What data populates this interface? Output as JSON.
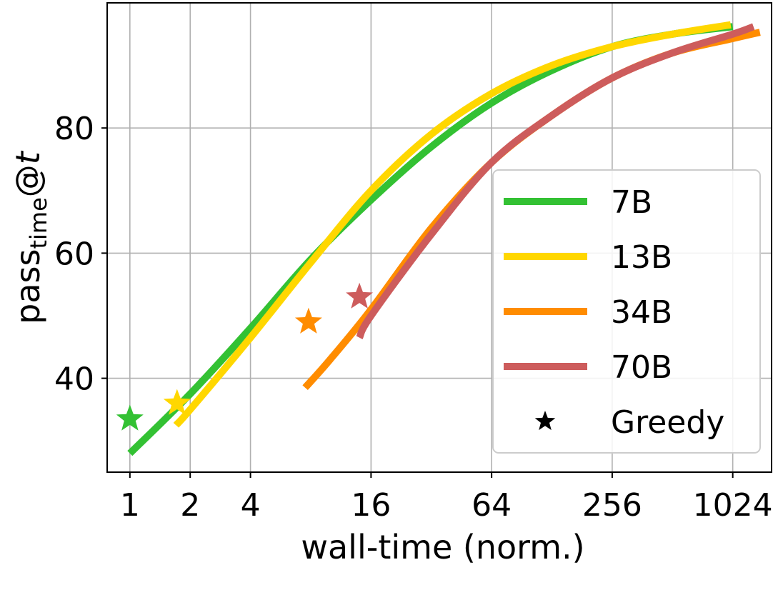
{
  "chart_data": {
    "type": "line",
    "xlabel": "wall-time (norm.)",
    "ylabel": {
      "base": "pass",
      "subscript": "time",
      "suffix": "@",
      "italic": "t"
    },
    "x_scale": "log2",
    "xlim": [
      0.77,
      1600
    ],
    "ylim": [
      25,
      100
    ],
    "x_ticks": [
      1,
      2,
      4,
      16,
      64,
      256,
      1024
    ],
    "x_tick_labels": [
      "1",
      "2",
      "4",
      "16",
      "64",
      "256",
      "1024"
    ],
    "y_ticks": [
      40,
      60,
      80
    ],
    "y_tick_labels": [
      "40",
      "60",
      "80"
    ],
    "grid": true,
    "legend_position": "lower-right",
    "series": [
      {
        "name": "7B",
        "color": "#33c133",
        "x": [
          1,
          2,
          4,
          8,
          16,
          32,
          64,
          128,
          256,
          512,
          1024
        ],
        "y": [
          28,
          37.5,
          48,
          59,
          68.5,
          77,
          84,
          89.2,
          93,
          95,
          96.2
        ],
        "greedy": {
          "x": 1,
          "y": 33.5
        }
      },
      {
        "name": "13B",
        "color": "#ffd700",
        "x": [
          1.7,
          2,
          4,
          8,
          16,
          32,
          64,
          128,
          256,
          512,
          1000
        ],
        "y": [
          32.5,
          35,
          46.5,
          58.5,
          70,
          79,
          85.5,
          90,
          93,
          95,
          96.5
        ],
        "greedy": {
          "x": 1.72,
          "y": 36
        }
      },
      {
        "name": "34B",
        "color": "#ff8c00",
        "x": [
          7.5,
          10,
          16,
          32,
          64,
          128,
          256,
          512,
          1024,
          1400
        ],
        "y": [
          38.5,
          43,
          51,
          64,
          74.5,
          82,
          88,
          92,
          94.3,
          95.3
        ],
        "greedy": {
          "x": 7.8,
          "y": 49
        }
      },
      {
        "name": "70B",
        "color": "#cd5c5c",
        "x": [
          14,
          16,
          32,
          64,
          128,
          256,
          512,
          1024,
          1300
        ],
        "y": [
          46.5,
          50,
          63,
          74.5,
          82,
          88,
          92,
          95,
          96.2
        ],
        "greedy": {
          "x": 14,
          "y": 53
        }
      }
    ],
    "legend_entries": [
      {
        "label": "7B",
        "kind": "line",
        "color": "#33c133"
      },
      {
        "label": "13B",
        "kind": "line",
        "color": "#ffd700"
      },
      {
        "label": "34B",
        "kind": "line",
        "color": "#ff8c00"
      },
      {
        "label": "70B",
        "kind": "line",
        "color": "#cd5c5c"
      },
      {
        "label": "Greedy",
        "kind": "star",
        "color": "#000000"
      }
    ]
  }
}
